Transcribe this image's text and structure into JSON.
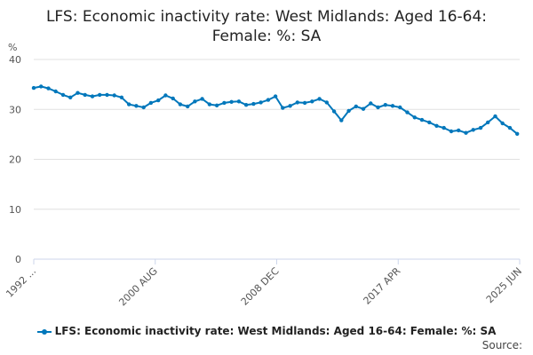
{
  "chart_data": {
    "type": "line",
    "title_line1": "LFS: Economic inactivity rate: West Midlands: Aged 16-64:",
    "title_line2": "Female: %: SA",
    "ylabel": "%",
    "ylim": [
      0,
      40
    ],
    "yticks": [
      "0",
      "10",
      "20",
      "30",
      "40"
    ],
    "xticks": [
      "1992 ...",
      "2000 AUG",
      "2008 DEC",
      "2017 APR",
      "2025 JUN"
    ],
    "grid": true,
    "legend_position": "bottom",
    "series": [
      {
        "name": "LFS: Economic inactivity rate: West Midlands: Aged 16-64: Female: %: SA",
        "color": "#0077bb",
        "x": [
          1992.25,
          1992.75,
          1993.25,
          1993.75,
          1994.25,
          1994.75,
          1995.25,
          1995.75,
          1996.25,
          1996.75,
          1997.25,
          1997.75,
          1998.25,
          1998.75,
          1999.25,
          1999.75,
          2000.25,
          2000.75,
          2001.25,
          2001.75,
          2002.25,
          2002.75,
          2003.25,
          2003.75,
          2004.25,
          2004.75,
          2005.25,
          2005.75,
          2006.25,
          2006.75,
          2007.25,
          2007.75,
          2008.25,
          2008.75,
          2009.25,
          2009.75,
          2010.25,
          2010.75,
          2011.25,
          2011.75,
          2012.25,
          2012.75,
          2013.25,
          2013.75,
          2014.25,
          2014.75,
          2015.25,
          2015.75,
          2016.25,
          2016.75,
          2017.25,
          2017.75,
          2018.25,
          2018.75,
          2019.25,
          2019.75,
          2020.25,
          2020.75,
          2021.25,
          2021.75,
          2022.25,
          2022.75,
          2023.25,
          2023.75,
          2024.25,
          2024.75,
          2025.25
        ],
        "values": [
          34.3,
          34.6,
          34.2,
          33.6,
          32.9,
          32.4,
          33.3,
          32.9,
          32.6,
          32.9,
          32.9,
          32.8,
          32.4,
          31.0,
          30.7,
          30.4,
          31.3,
          31.8,
          32.8,
          32.2,
          31.0,
          30.6,
          31.6,
          32.1,
          31.0,
          30.8,
          31.3,
          31.5,
          31.6,
          30.9,
          31.1,
          31.4,
          31.9,
          32.6,
          30.3,
          30.7,
          31.4,
          31.3,
          31.6,
          32.1,
          31.4,
          29.6,
          27.8,
          29.7,
          30.6,
          30.1,
          31.2,
          30.4,
          30.9,
          30.7,
          30.4,
          29.4,
          28.4,
          27.9,
          27.4,
          26.7,
          26.3,
          25.6,
          25.8,
          25.3,
          25.9,
          26.3,
          27.4,
          28.6,
          27.2,
          26.3,
          25.1
        ]
      }
    ]
  },
  "source_label": "Source:"
}
